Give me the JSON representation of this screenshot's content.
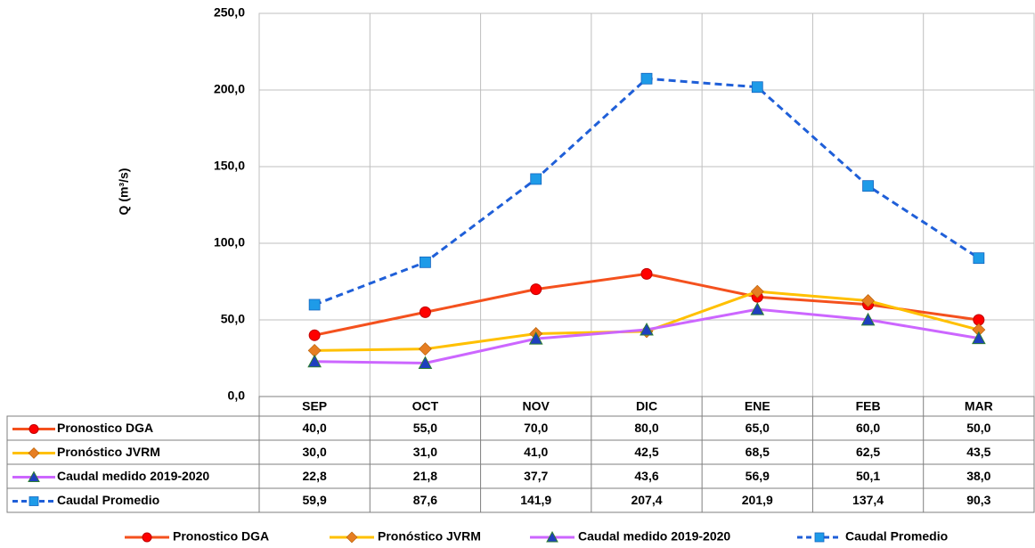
{
  "chart_data": {
    "type": "line",
    "y_label": "Q (m³/s)",
    "categories": [
      "SEP",
      "OCT",
      "NOV",
      "DIC",
      "ENE",
      "FEB",
      "MAR"
    ],
    "ylim": [
      0,
      250
    ],
    "yticks": [
      {
        "value": 0,
        "label": "0,0"
      },
      {
        "value": 50,
        "label": "50,0"
      },
      {
        "value": 100,
        "label": "100,0"
      },
      {
        "value": 150,
        "label": "150,0"
      },
      {
        "value": 200,
        "label": "200,0"
      },
      {
        "value": 250,
        "label": "250,0"
      }
    ],
    "grid": true,
    "series": [
      {
        "name": "Pronostico DGA",
        "color": "#f4511e",
        "marker_color": "#ff0000",
        "marker": "circle",
        "dashed": false,
        "values": [
          40.0,
          55.0,
          70.0,
          80.0,
          65.0,
          60.0,
          50.0
        ],
        "value_labels": [
          "40,0",
          "55,0",
          "70,0",
          "80,0",
          "65,0",
          "60,0",
          "50,0"
        ]
      },
      {
        "name": "Pronóstico JVRM",
        "color": "#ffc000",
        "marker_color": "#e67e22",
        "marker": "diamond",
        "dashed": false,
        "values": [
          30.0,
          31.0,
          41.0,
          42.5,
          68.5,
          62.5,
          43.5
        ],
        "value_labels": [
          "30,0",
          "31,0",
          "41,0",
          "42,5",
          "68,5",
          "62,5",
          "43,5"
        ]
      },
      {
        "name": "Caudal medido 2019-2020",
        "color": "#cc66ff",
        "marker_color": "#1f3fbf",
        "marker": "triangle",
        "dashed": false,
        "values": [
          22.8,
          21.8,
          37.7,
          43.6,
          56.9,
          50.1,
          38.0
        ],
        "value_labels": [
          "22,8",
          "21,8",
          "37,7",
          "43,6",
          "56,9",
          "50,1",
          "38,0"
        ]
      },
      {
        "name": "Caudal Promedio",
        "color": "#1f5fd8",
        "marker_color": "#1e9be8",
        "marker": "square",
        "dashed": true,
        "values": [
          59.9,
          87.6,
          141.9,
          207.4,
          201.9,
          137.4,
          90.3
        ],
        "value_labels": [
          "59,9",
          "87,6",
          "141,9",
          "207,4",
          "201,9",
          "137,4",
          "90,3"
        ]
      }
    ]
  }
}
